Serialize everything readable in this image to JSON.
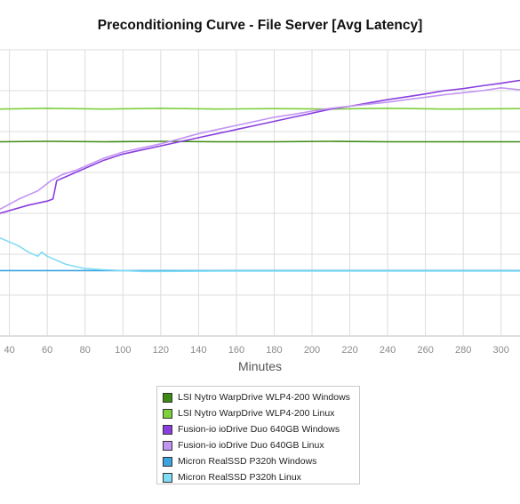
{
  "chart_data": {
    "type": "line",
    "title": "Preconditioning Curve - File Server [Avg Latency]",
    "xlabel": "Minutes",
    "ylabel": "",
    "xlim": [
      35,
      310
    ],
    "x_ticks": [
      40,
      60,
      80,
      100,
      120,
      140,
      160,
      180,
      200,
      220,
      240,
      260,
      280,
      300
    ],
    "ylim": [
      0,
      7
    ],
    "grid": true,
    "legend_placement": "bottom",
    "series": [
      {
        "name": "LSI Nytro WarpDrive WLP4-200 Windows",
        "color": "#3d8a12",
        "x": [
          35,
          60,
          90,
          120,
          150,
          180,
          210,
          240,
          270,
          310
        ],
        "y": [
          4.75,
          4.76,
          4.75,
          4.76,
          4.75,
          4.75,
          4.76,
          4.75,
          4.75,
          4.75
        ]
      },
      {
        "name": "LSI Nytro WarpDrive WLP4-200 Linux",
        "color": "#7dcf3c",
        "x": [
          35,
          60,
          90,
          120,
          150,
          180,
          210,
          240,
          270,
          310
        ],
        "y": [
          5.55,
          5.57,
          5.55,
          5.57,
          5.55,
          5.56,
          5.55,
          5.57,
          5.55,
          5.56
        ]
      },
      {
        "name": "Fusion-io ioDrive Duo 640GB Windows",
        "color": "#8a3ee0",
        "x": [
          35,
          50,
          60,
          63,
          65,
          70,
          80,
          90,
          100,
          110,
          120,
          130,
          140,
          150,
          160,
          170,
          180,
          190,
          200,
          210,
          220,
          230,
          240,
          250,
          260,
          270,
          280,
          290,
          300,
          305,
          310
        ],
        "y": [
          3.0,
          3.2,
          3.3,
          3.35,
          3.8,
          3.9,
          4.1,
          4.3,
          4.45,
          4.55,
          4.65,
          4.75,
          4.85,
          4.95,
          5.05,
          5.15,
          5.25,
          5.35,
          5.45,
          5.55,
          5.62,
          5.7,
          5.78,
          5.85,
          5.92,
          6.0,
          6.05,
          6.12,
          6.18,
          6.22,
          6.25
        ]
      },
      {
        "name": "Fusion-io ioDrive Duo 640GB Linux",
        "color": "#c194f2",
        "x": [
          35,
          45,
          55,
          62,
          68,
          75,
          80,
          90,
          100,
          110,
          120,
          130,
          140,
          150,
          160,
          170,
          180,
          190,
          200,
          210,
          220,
          230,
          240,
          250,
          260,
          270,
          280,
          290,
          300,
          310
        ],
        "y": [
          3.1,
          3.35,
          3.55,
          3.8,
          3.95,
          4.05,
          4.15,
          4.35,
          4.5,
          4.6,
          4.7,
          4.82,
          4.95,
          5.05,
          5.15,
          5.25,
          5.35,
          5.42,
          5.5,
          5.57,
          5.62,
          5.67,
          5.72,
          5.78,
          5.84,
          5.9,
          5.95,
          6.0,
          6.07,
          6.02
        ]
      },
      {
        "name": "Micron RealSSD P320h Windows",
        "color": "#3aa3e0",
        "x": [
          35,
          310
        ],
        "y": [
          1.6,
          1.6
        ]
      },
      {
        "name": "Micron RealSSD P320h Linux",
        "color": "#7fdcf5",
        "x": [
          35,
          45,
          50,
          55,
          57,
          60,
          70,
          80,
          90,
          100,
          110,
          120,
          150,
          200,
          250,
          310
        ],
        "y": [
          2.4,
          2.2,
          2.05,
          1.95,
          2.05,
          1.95,
          1.75,
          1.65,
          1.62,
          1.6,
          1.58,
          1.58,
          1.59,
          1.59,
          1.59,
          1.59
        ]
      }
    ]
  }
}
